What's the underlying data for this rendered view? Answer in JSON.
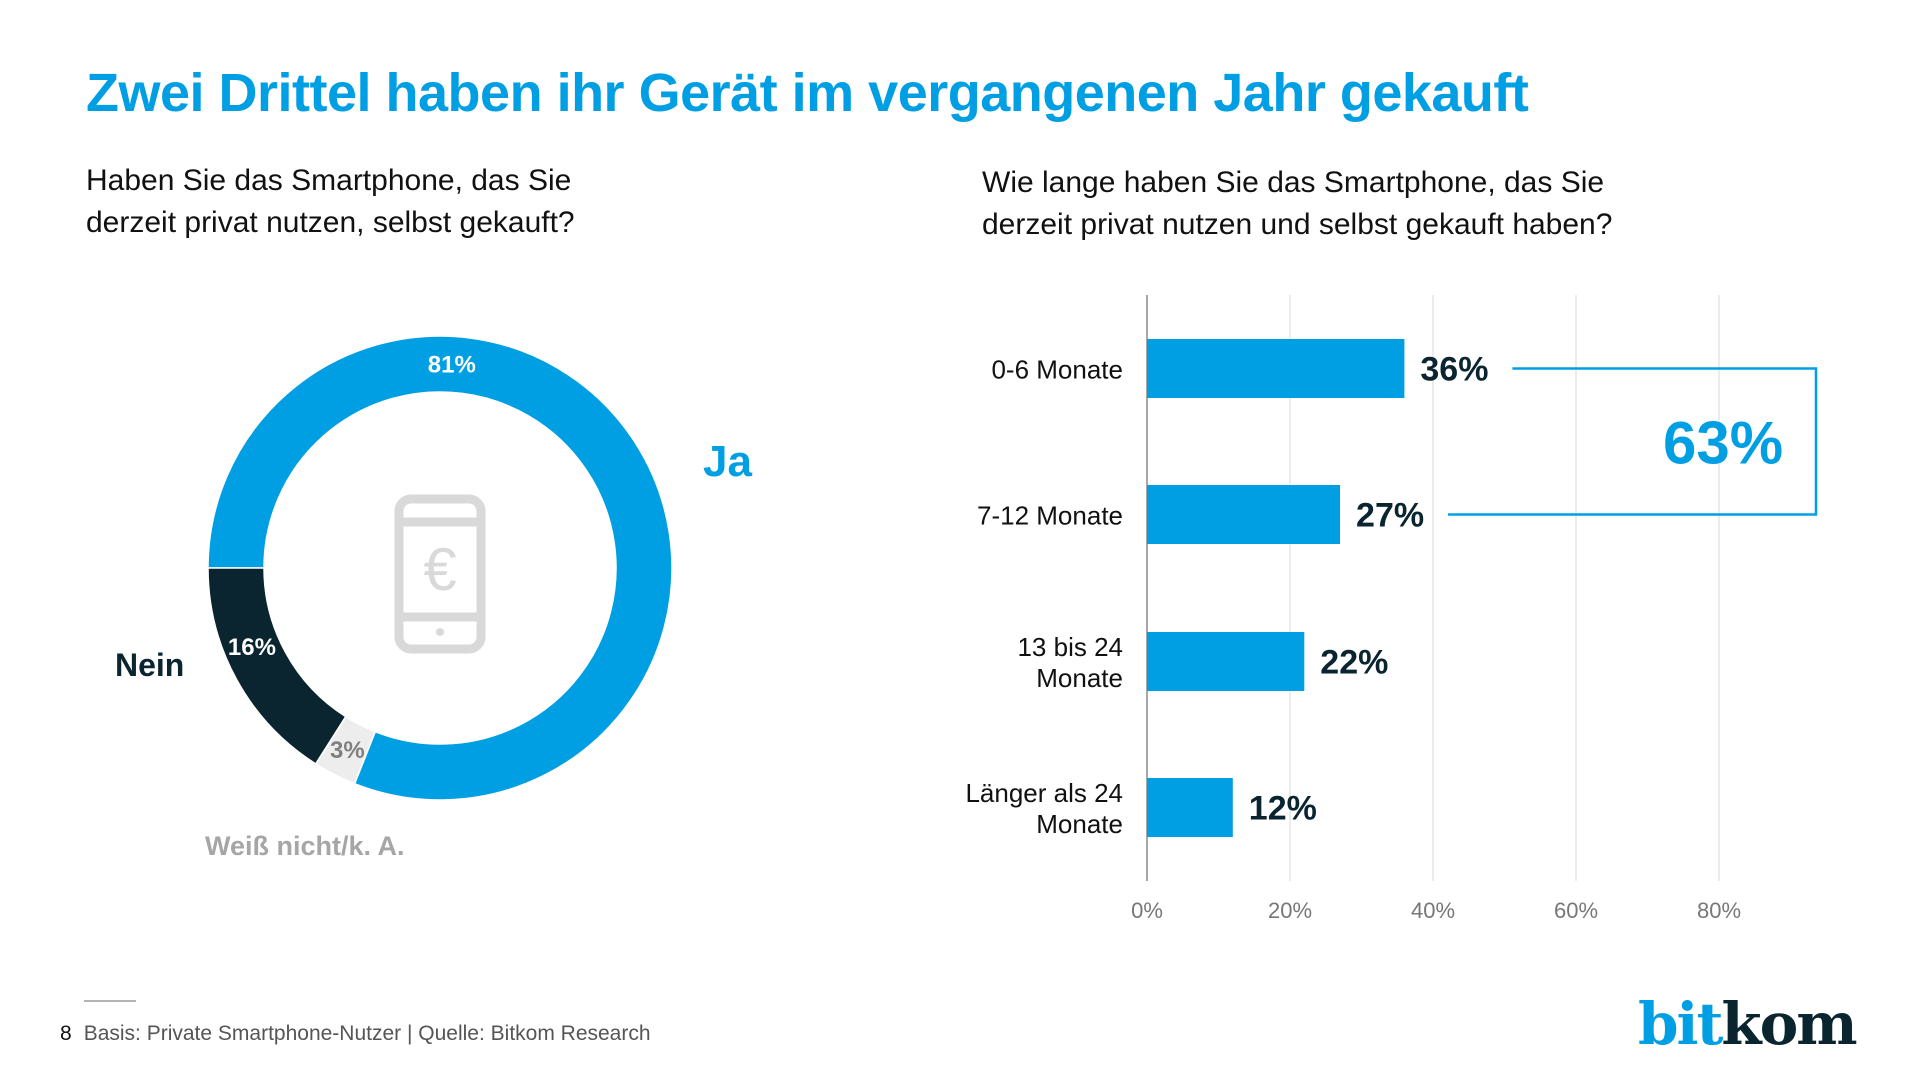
{
  "title": "Zwei Drittel haben ihr Gerät im vergangenen Jahr gekauft",
  "colors": {
    "accent": "#009fe3",
    "dark": "#0a2530",
    "unknown": "#ededed",
    "unknown_text": "#808080",
    "unknown_label": "#a6a6a6",
    "grid": "#d9d9d9",
    "icon": "#d9d9d9",
    "tick": "#777777"
  },
  "left_question": {
    "line1": "Haben Sie das Smartphone, das Sie",
    "line2": "derzeit privat nutzen, selbst gekauft?"
  },
  "right_question": {
    "line1": "Wie lange haben Sie das Smartphone, das Sie",
    "line2": "derzeit privat nutzen und selbst gekauft haben?"
  },
  "center_icon": "smartphone-euro-icon",
  "footer": {
    "page_number": "8",
    "source": "Basis: Private Smartphone-Nutzer | Quelle: Bitkom Research"
  },
  "logo": {
    "part1": "bit",
    "part2": "kom"
  },
  "chart_data": [
    {
      "type": "pie",
      "variant": "donut",
      "title": "Haben Sie das Smartphone, das Sie derzeit privat nutzen, selbst gekauft?",
      "start": "9 o'clock, clockwise",
      "slices": [
        {
          "name": "Ja",
          "value": 81,
          "label": "81%",
          "color": "#009fe3",
          "label_color": "#ffffff",
          "legend_color": "#009fe3"
        },
        {
          "name": "Weiß nicht/k. A.",
          "value": 3,
          "label": "3%",
          "color": "#ededed",
          "label_color": "#808080",
          "legend_color": "#a6a6a6"
        },
        {
          "name": "Nein",
          "value": 16,
          "label": "16%",
          "color": "#0a2530",
          "label_color": "#ffffff",
          "legend_color": "#0a2530"
        }
      ],
      "unit": "%"
    },
    {
      "type": "bar",
      "orientation": "horizontal",
      "title": "Wie lange haben Sie das Smartphone, das Sie derzeit privat nutzen und selbst gekauft haben?",
      "categories": [
        [
          "0-6 Monate"
        ],
        [
          "7-12 Monate"
        ],
        [
          "13 bis 24",
          "Monate"
        ],
        [
          "Länger als 24",
          "Monate"
        ]
      ],
      "values": [
        36,
        27,
        22,
        12
      ],
      "labels": [
        "36%",
        "27%",
        "22%",
        "12%"
      ],
      "xlim": [
        0,
        95
      ],
      "xticks": [
        0,
        20,
        40,
        60,
        80
      ],
      "xtick_labels": [
        "0%",
        "20%",
        "40%",
        "60%",
        "80%"
      ],
      "grid": true,
      "bar_color": "#009fe3",
      "annotation": {
        "text": "63%",
        "brackets": [
          "0-6 Monate",
          "7-12 Monate"
        ],
        "placement": "right"
      }
    }
  ]
}
